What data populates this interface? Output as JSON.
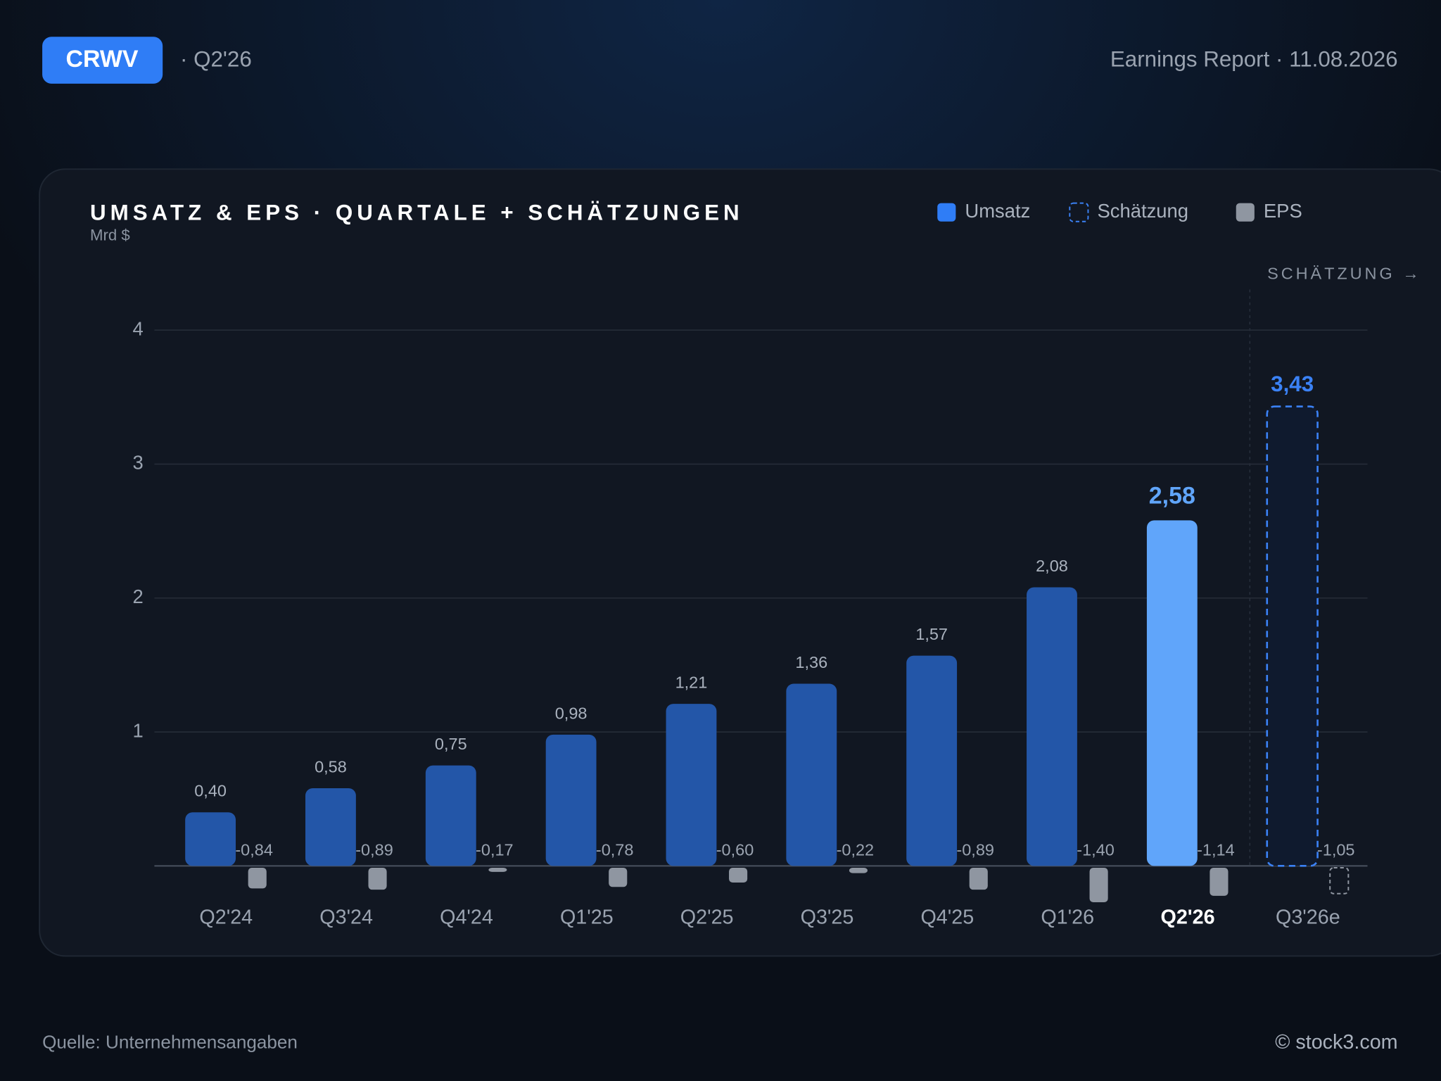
{
  "header": {
    "ticker": "CRWV",
    "period": "· Q2'26",
    "report": "Earnings Report · 11.08.2026"
  },
  "footer": {
    "source": "Quelle: Unternehmensangaben",
    "credit": "© stock3.com"
  },
  "chart_data": {
    "type": "bar",
    "title": "UMSATZ & EPS · QUARTALE + SCHÄTZUNGEN",
    "subtitle": "Mrd $",
    "annotation": "SCHÄTZUNG →",
    "categories": [
      "Q2'24",
      "Q3'24",
      "Q4'24",
      "Q1'25",
      "Q2'25",
      "Q3'25",
      "Q4'25",
      "Q1'26",
      "Q2'26",
      "Q3'26e"
    ],
    "highlight_index": 8,
    "estimate_index": 9,
    "series": [
      {
        "name": "Umsatz",
        "color": "#2356a8",
        "highlight_color": "#60a5fa",
        "legend_color": "#2f7df6",
        "values": [
          0.4,
          0.58,
          0.75,
          0.98,
          1.21,
          1.36,
          1.57,
          2.08,
          2.58,
          null
        ],
        "value_labels": [
          "0,40",
          "0,58",
          "0,75",
          "0,98",
          "1,21",
          "1,36",
          "1,57",
          "2,08",
          "2,58",
          null
        ]
      },
      {
        "name": "Schätzung",
        "color": "#3b82f6",
        "dashed": true,
        "values": [
          null,
          null,
          null,
          null,
          null,
          null,
          null,
          null,
          null,
          3.43
        ],
        "value_labels": [
          null,
          null,
          null,
          null,
          null,
          null,
          null,
          null,
          null,
          "3,43"
        ]
      },
      {
        "name": "EPS",
        "color": "#8f96a1",
        "axis": "y2",
        "values": [
          -0.84,
          -0.89,
          -0.17,
          -0.78,
          -0.6,
          -0.22,
          -0.89,
          -1.4,
          -1.14,
          -1.05
        ],
        "value_labels": [
          "-0,84",
          "-0,89",
          "-0,17",
          "-0,78",
          "-0,60",
          "-0,22",
          "-0,89",
          "-1,40",
          "-1,14",
          "-1,05"
        ]
      }
    ],
    "ylim": [
      0,
      4.2
    ],
    "yticks": [
      1,
      2,
      3,
      4
    ],
    "y2lim": [
      -2.5,
      0
    ],
    "grid": true
  }
}
